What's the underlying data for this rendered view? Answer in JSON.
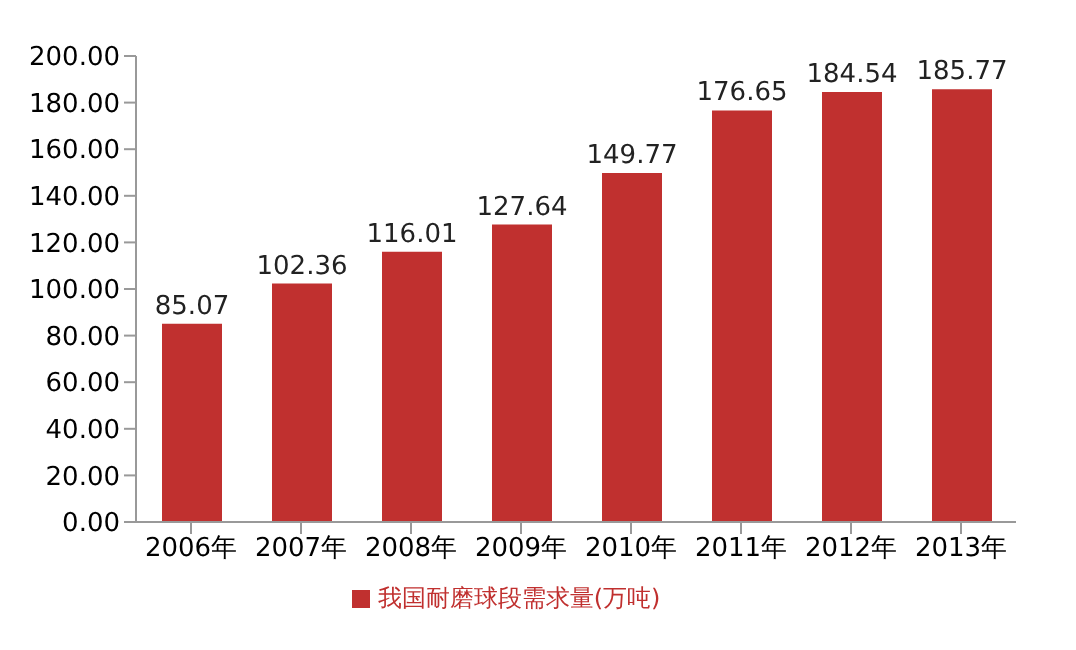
{
  "chart_data": {
    "type": "bar",
    "categories": [
      "2006年",
      "2007年",
      "2008年",
      "2009年",
      "2010年",
      "2011年",
      "2012年",
      "2013年"
    ],
    "series": [
      {
        "name": "我国耐磨球段需求量(万吨)",
        "color": "#c0302f",
        "values": [
          85.07,
          102.36,
          116.01,
          127.64,
          149.77,
          176.65,
          184.54,
          185.77
        ]
      }
    ],
    "ylim": [
      0,
      200
    ],
    "yticks": [
      {
        "value": 0,
        "label": "0.00"
      },
      {
        "value": 20,
        "label": "20.00"
      },
      {
        "value": 40,
        "label": "40.00"
      },
      {
        "value": 60,
        "label": "60.00"
      },
      {
        "value": 80,
        "label": "80.00"
      },
      {
        "value": 100,
        "label": "100.00"
      },
      {
        "value": 120,
        "label": "120.00"
      },
      {
        "value": 140,
        "label": "140.00"
      },
      {
        "value": 160,
        "label": "160.00"
      },
      {
        "value": 180,
        "label": "180.00"
      },
      {
        "value": 200,
        "label": "200.00"
      }
    ],
    "data_labels": true,
    "grid": false,
    "legend": "bottom"
  }
}
